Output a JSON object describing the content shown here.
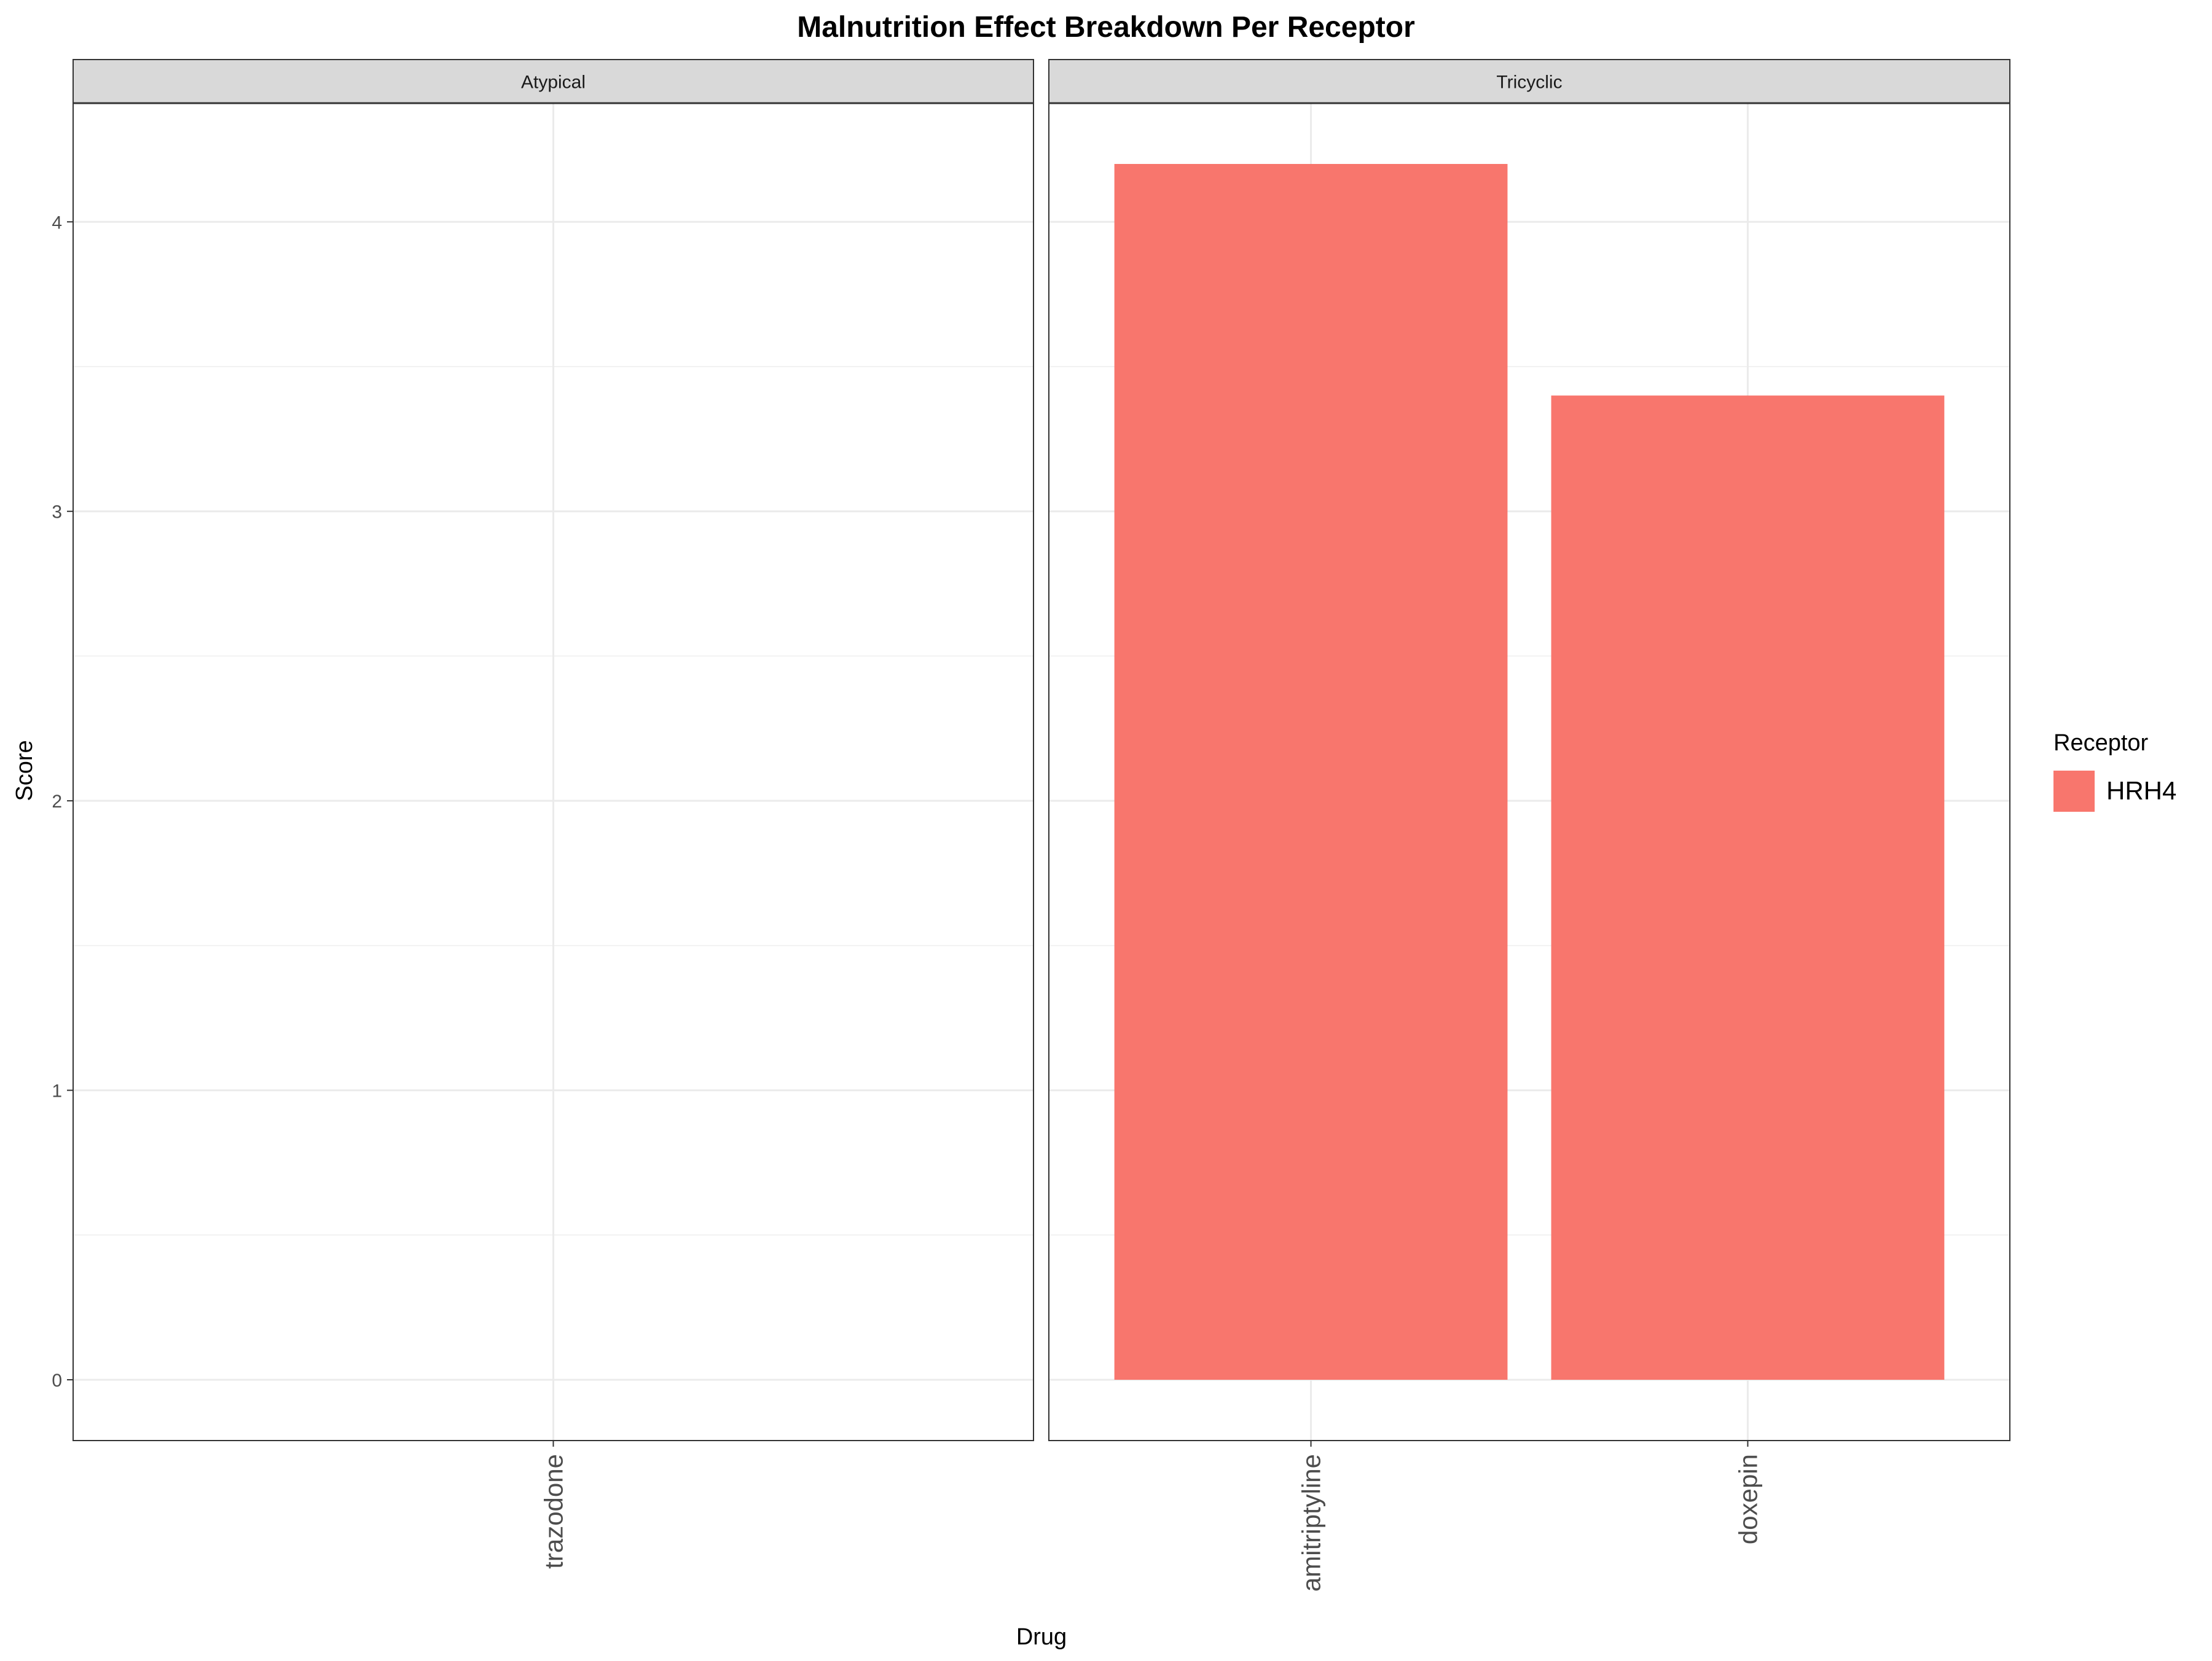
{
  "chart_data": {
    "type": "bar",
    "title": "Malnutrition Effect Breakdown Per Receptor",
    "xlabel": "Drug",
    "ylabel": "Score",
    "ylim": [
      -0.21,
      4.41
    ],
    "yticks": [
      0,
      1,
      2,
      3,
      4
    ],
    "grid": true,
    "legend": {
      "title": "Receptor",
      "position": "right",
      "entries": [
        {
          "name": "HRH4",
          "color": "#F8766D"
        }
      ]
    },
    "facets": [
      {
        "label": "Atypical",
        "categories": [
          "trazodone"
        ],
        "values": [
          null
        ]
      },
      {
        "label": "Tricyclic",
        "categories": [
          "amitriptyline",
          "doxepin"
        ],
        "values": [
          4.2,
          3.4
        ]
      }
    ],
    "series": [
      {
        "name": "HRH4",
        "color": "#F8766D"
      }
    ]
  }
}
